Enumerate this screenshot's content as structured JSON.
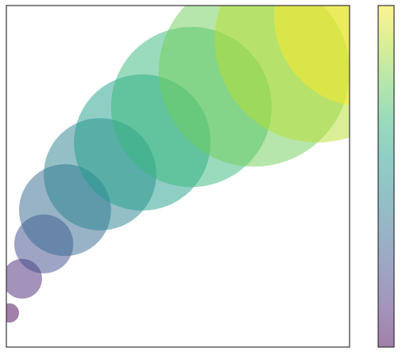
{
  "chart_data": {
    "type": "scatter",
    "x": [
      0.09,
      0.46,
      1.09,
      1.71,
      2.73,
      3.96,
      5.39,
      7.22,
      9.07,
      10.46
    ],
    "y": [
      1.0,
      2.0,
      3.02,
      4.01,
      5.06,
      5.99,
      7.03,
      8.07,
      9.0,
      9.7
    ],
    "sizes": [
      0.28,
      0.58,
      0.86,
      1.34,
      1.64,
      1.99,
      2.34,
      2.78,
      3.0,
      2.66
    ],
    "color_values": [
      0,
      1,
      2,
      3,
      4,
      5,
      6,
      7,
      8,
      9
    ],
    "colormap": [
      "#440154",
      "#482878",
      "#3e4989",
      "#31688e",
      "#26828e",
      "#1f9e89",
      "#35b779",
      "#6ece58",
      "#b5de2b",
      "#fde725"
    ],
    "alpha": 0.5,
    "xlim": [
      0,
      10
    ],
    "ylim": [
      0,
      10
    ],
    "clim": [
      0,
      9
    ]
  }
}
